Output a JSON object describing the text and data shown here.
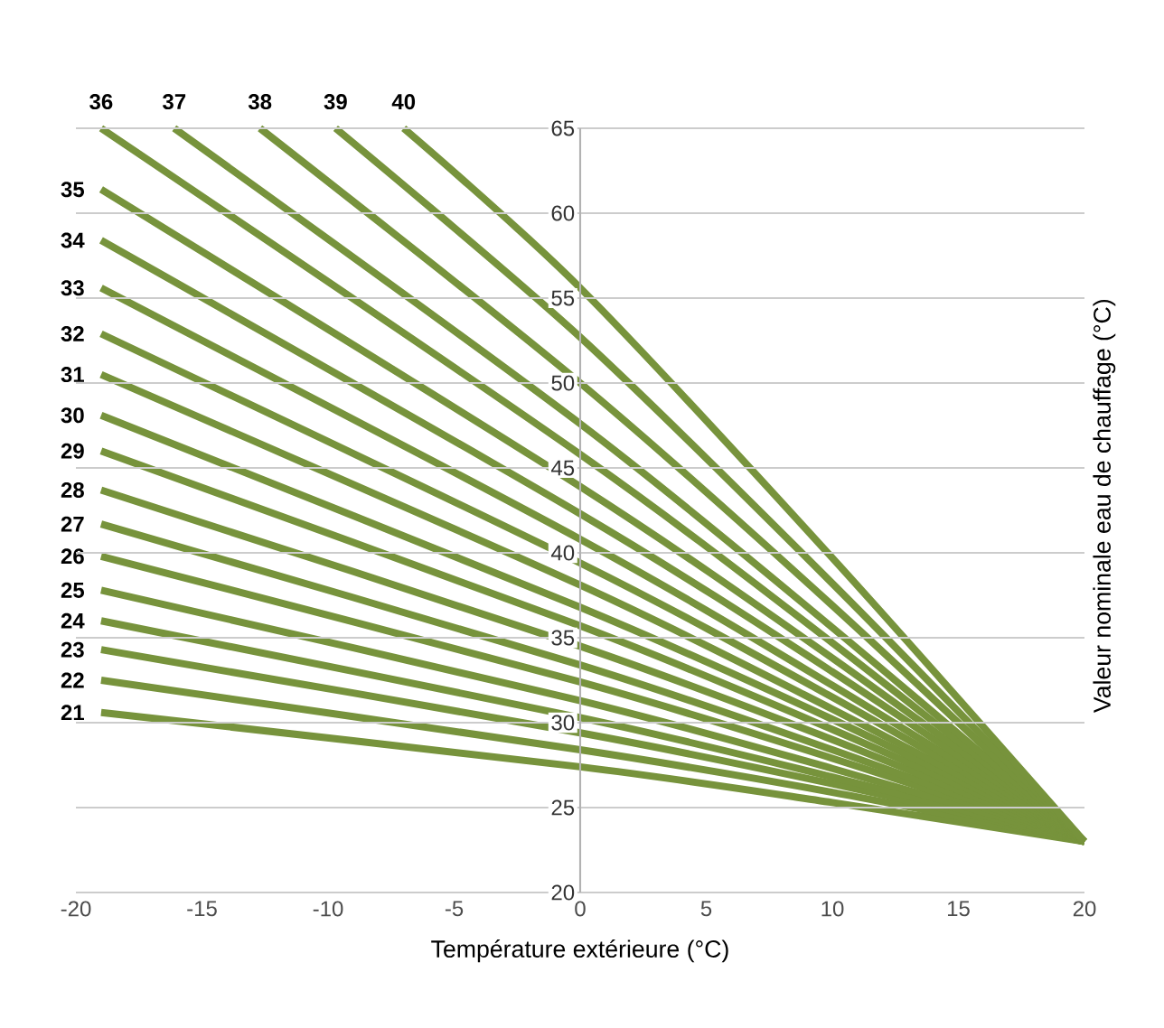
{
  "chart_data": {
    "type": "line",
    "xlabel": "Température extérieure (°C)",
    "ylabel": "Valeur nominale eau de chauffage (°C)",
    "xlim": [
      -20,
      20
    ],
    "ylim": [
      20,
      65
    ],
    "xticks": [
      -20,
      -15,
      -10,
      -5,
      0,
      5,
      10,
      15,
      20
    ],
    "yticks": [
      20,
      25,
      30,
      35,
      40,
      45,
      50,
      55,
      60,
      65
    ],
    "grid": "y",
    "series": [
      {
        "name": "21",
        "color": "#77933c",
        "x": [
          -19,
          0,
          10,
          20
        ],
        "values": [
          30.6,
          27.4,
          25.3,
          23
        ]
      },
      {
        "name": "22",
        "color": "#77933c",
        "x": [
          -19,
          0,
          10,
          20
        ],
        "values": [
          32.5,
          28.4,
          25.9,
          23
        ]
      },
      {
        "name": "23",
        "color": "#77933c",
        "x": [
          -19,
          0,
          10,
          20
        ],
        "values": [
          34.3,
          29.4,
          26.4,
          23
        ]
      },
      {
        "name": "24",
        "color": "#77933c",
        "x": [
          -19,
          0,
          10,
          20
        ],
        "values": [
          36.0,
          30.3,
          26.8,
          23
        ]
      },
      {
        "name": "25",
        "color": "#77933c",
        "x": [
          -19,
          0,
          10,
          20
        ],
        "values": [
          37.8,
          31.3,
          27.3,
          23
        ]
      },
      {
        "name": "26",
        "color": "#77933c",
        "x": [
          -19,
          0,
          10,
          20
        ],
        "values": [
          39.8,
          32.4,
          27.9,
          23
        ]
      },
      {
        "name": "27",
        "color": "#77933c",
        "x": [
          -19,
          0,
          10,
          20
        ],
        "values": [
          41.7,
          33.4,
          28.4,
          23
        ]
      },
      {
        "name": "28",
        "color": "#77933c",
        "x": [
          -19,
          0,
          10,
          20
        ],
        "values": [
          43.7,
          34.5,
          29.0,
          23
        ]
      },
      {
        "name": "29",
        "color": "#77933c",
        "x": [
          -19,
          0,
          10,
          20
        ],
        "values": [
          46.0,
          35.7,
          29.6,
          23
        ]
      },
      {
        "name": "30",
        "color": "#77933c",
        "x": [
          -19,
          0,
          10,
          20
        ],
        "values": [
          48.1,
          36.8,
          30.2,
          23
        ]
      },
      {
        "name": "31",
        "color": "#77933c",
        "x": [
          -19,
          0,
          10,
          20
        ],
        "values": [
          50.5,
          38.1,
          30.8,
          23
        ]
      },
      {
        "name": "32",
        "color": "#77933c",
        "x": [
          -19,
          0,
          10,
          20
        ],
        "values": [
          52.9,
          39.4,
          31.5,
          23
        ]
      },
      {
        "name": "33",
        "color": "#77933c",
        "x": [
          -19,
          0,
          10,
          20
        ],
        "values": [
          55.6,
          40.8,
          32.2,
          23
        ]
      },
      {
        "name": "34",
        "color": "#77933c",
        "x": [
          -19,
          0,
          10,
          20
        ],
        "values": [
          58.4,
          42.3,
          33.0,
          23
        ]
      },
      {
        "name": "35",
        "color": "#77933c",
        "x": [
          -19,
          0,
          10,
          20
        ],
        "values": [
          61.4,
          43.9,
          33.8,
          23
        ]
      },
      {
        "name": "36",
        "color": "#77933c",
        "x": [
          -19,
          0,
          10,
          20
        ],
        "values": [
          65,
          45.8,
          34.7,
          23
        ]
      },
      {
        "name": "37",
        "color": "#77933c",
        "x": [
          -16.1,
          0,
          10,
          20
        ],
        "values": [
          65,
          47.6,
          35.6,
          23
        ]
      },
      {
        "name": "38",
        "color": "#77933c",
        "x": [
          -12.7,
          0,
          10,
          20
        ],
        "values": [
          65,
          50.0,
          36.9,
          23
        ]
      },
      {
        "name": "39",
        "color": "#77933c",
        "x": [
          -9.7,
          0,
          10,
          20
        ],
        "values": [
          65,
          52.7,
          38.2,
          23
        ]
      },
      {
        "name": "40",
        "color": "#77933c",
        "x": [
          -7.0,
          0,
          10,
          20
        ],
        "values": [
          65,
          55.6,
          39.7,
          23
        ]
      }
    ]
  }
}
